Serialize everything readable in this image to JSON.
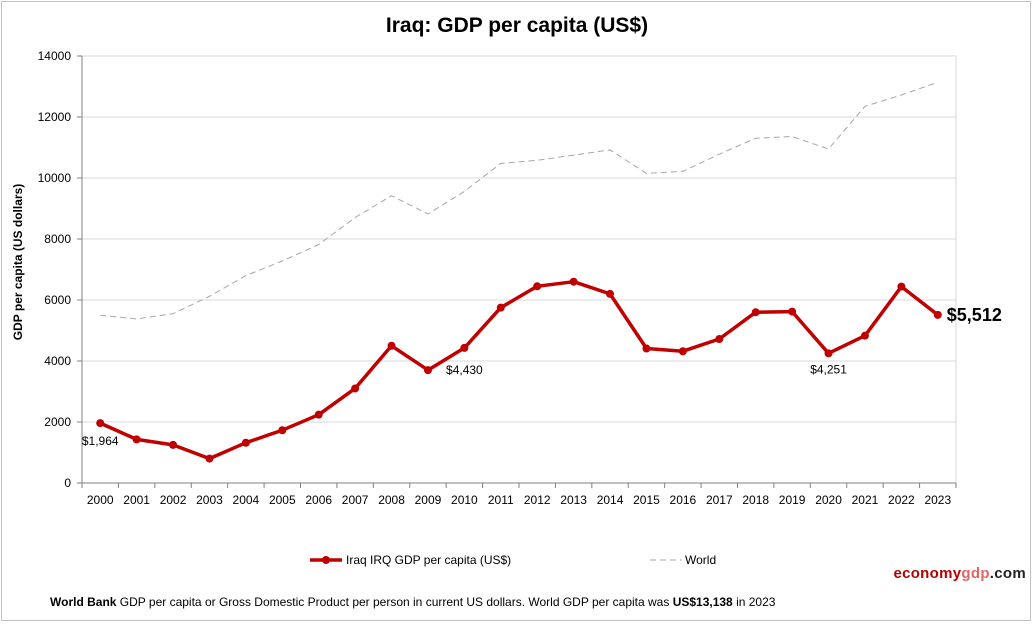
{
  "chart_data": {
    "type": "line",
    "title": "Iraq: GDP per capita (US$)",
    "ylabel": "GDP per capita (US dollars)",
    "xlabel": "",
    "ylim": [
      0,
      14000
    ],
    "yticks": [
      0,
      2000,
      4000,
      6000,
      8000,
      10000,
      12000,
      14000
    ],
    "grid": true,
    "legend_position": "bottom",
    "x": [
      2000,
      2001,
      2002,
      2003,
      2004,
      2005,
      2006,
      2007,
      2008,
      2009,
      2010,
      2011,
      2012,
      2013,
      2014,
      2015,
      2016,
      2017,
      2018,
      2019,
      2020,
      2021,
      2022,
      2023
    ],
    "series": [
      {
        "name": "Iraq IRQ GDP per capita (US$)",
        "color": "#c00000",
        "style": "solid",
        "markers": true,
        "values": [
          1964,
          1430,
          1250,
          800,
          1320,
          1730,
          2240,
          3100,
          4500,
          3700,
          4430,
          5750,
          6450,
          6600,
          6200,
          4410,
          4320,
          4720,
          5600,
          5620,
          4251,
          4830,
          6440,
          5512
        ]
      },
      {
        "name": "World",
        "color": "#a6a6a6",
        "style": "dashed",
        "markers": false,
        "values": [
          5500,
          5380,
          5550,
          6120,
          6800,
          7280,
          7820,
          8700,
          9420,
          8820,
          9560,
          10480,
          10580,
          10750,
          10920,
          10150,
          10220,
          10780,
          11300,
          11360,
          10950,
          12350,
          12720,
          13138
        ]
      }
    ],
    "annotations": [
      {
        "x": 2000,
        "text": "$1,964",
        "bold": false
      },
      {
        "x": 2010,
        "text": "$4,430",
        "bold": false
      },
      {
        "x": 2020,
        "text": "$4,251",
        "bold": false
      },
      {
        "x": 2023,
        "text": "$5,512",
        "bold": true
      }
    ]
  },
  "brand": {
    "part1": "economy",
    "part2": "gdp",
    "part3": ".com"
  },
  "footnote": {
    "source_bold": "World Bank",
    "text": " GDP per capita or Gross Domestic Product per person  in current US dollars.   World GDP per capita was ",
    "world_value_bold": "US$13,138",
    "suffix": "  in 2023"
  }
}
